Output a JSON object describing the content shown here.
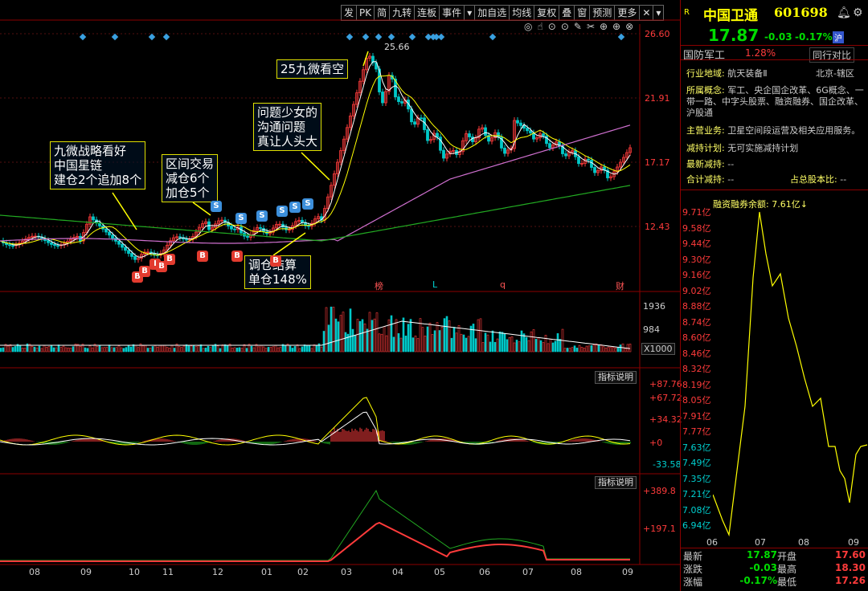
{
  "toolbar": {
    "items": [
      "发",
      "PK",
      "简",
      "九转",
      "连板",
      "事件",
      "▾",
      "加自选",
      "均线",
      "复权",
      "叠",
      "窗",
      "预测",
      "更多",
      "✕",
      "▾"
    ]
  },
  "chart": {
    "price_axis": [
      "26.60",
      "21.91",
      "17.17",
      "12.43"
    ],
    "high_marker": "25.66",
    "event_markers": [
      "榜",
      "L",
      "q",
      "财"
    ],
    "volume_axis": [
      "1936",
      "984",
      "X1000"
    ],
    "indicator_btn": "指标说明",
    "macd_axis": [
      "+87.76",
      "+67.72",
      "+34.32",
      "+0",
      "-33.58"
    ],
    "ind2_axis": [
      "+389.8",
      "+197.1"
    ],
    "months": [
      "08",
      "09",
      "10",
      "11",
      "12",
      "01",
      "02",
      "03",
      "04",
      "05",
      "06",
      "07",
      "08",
      "09"
    ],
    "annotations": [
      "九微战略看好\n中国星链\n建仓2个追加8个",
      "区间交易\n减仓6个\n加仓5个",
      "问题少女的\n沟通问题\n真让人头大",
      "25九微看空",
      "调仓结算\n单仓148%"
    ]
  },
  "quote": {
    "r_tag": "R",
    "name": "中国卫通",
    "code": "601698",
    "price": "17.87",
    "change": "-0.03",
    "pct": "-0.17%",
    "market": "沪",
    "sector": "国防军工",
    "sector_pct": "1.28%",
    "compare": "同行对比",
    "industry_label": "行业地域:",
    "industry": "航天装备Ⅱ",
    "region": "北京-辖区",
    "concept_label": "所属概念:",
    "concept": "军工、央企国企改革、6G概念、一带一路、中字头股票、融资融券、国企改革、沪股通",
    "business_label": "主营业务:",
    "business": "卫星空间段运营及相关应用服务。",
    "reduce_label": "减持计划:",
    "reduce": "无可实施减持计划",
    "latest_reduce_label": "最新减持:",
    "latest_reduce": "--",
    "total_reduce_label": "合计减持:",
    "total_reduce": "--",
    "share_ratio_label": "占总股本比:",
    "share_ratio": "--",
    "margin_title": "融资融券余额: 7.61亿↓",
    "margin_axis": [
      "9.71亿",
      "9.58亿",
      "9.44亿",
      "9.30亿",
      "9.16亿",
      "9.02亿",
      "8.88亿",
      "8.74亿",
      "8.60亿",
      "8.46亿",
      "8.32亿",
      "8.19亿",
      "8.05亿",
      "7.91亿",
      "7.77亿",
      "7.63亿",
      "7.49亿",
      "7.35亿",
      "7.21亿",
      "7.08亿",
      "6.94亿"
    ],
    "margin_months": [
      "06",
      "07",
      "08",
      "09"
    ],
    "stats": {
      "latest_l": "最新",
      "latest": "17.87",
      "open_l": "开盘",
      "open": "17.60",
      "chg_l": "涨跌",
      "chg": "-0.03",
      "high_l": "最高",
      "high": "18.30",
      "pct_l": "涨幅",
      "pct": "-0.17%",
      "low_l": "最低",
      "low": "17.26"
    }
  },
  "colors": {
    "up": "#ff3b3b",
    "down": "#00c8c8",
    "yellow": "#ffff00",
    "ma_magenta": "#d070d0",
    "ma_green": "#22aa22"
  }
}
